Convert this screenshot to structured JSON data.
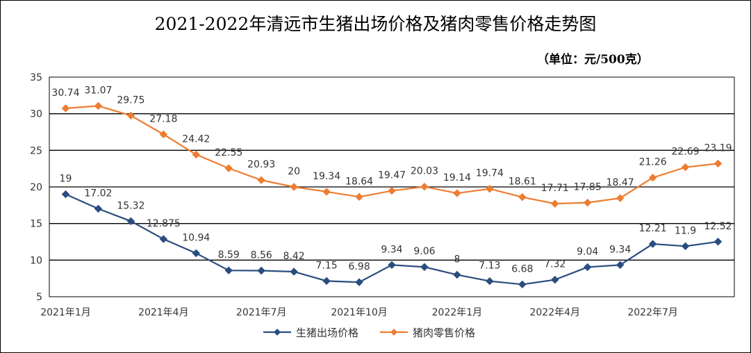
{
  "chart_data": {
    "type": "line",
    "title": "2021-2022年清远市生猪出场价格及猪肉零售价格走势图",
    "unit_note": "（单位：元/500克）",
    "ylim": [
      5,
      35
    ],
    "y_ticks": [
      5,
      10,
      15,
      20,
      25,
      30,
      35
    ],
    "grid": true,
    "legend_position": "bottom",
    "x": [
      "2021年1月",
      "2021年2月",
      "2021年3月",
      "2021年4月",
      "2021年5月",
      "2021年6月",
      "2021年7月",
      "2021年8月",
      "2021年9月",
      "2021年10月",
      "2021年11月",
      "2021年12月",
      "2022年1月",
      "2022年2月",
      "2022年3月",
      "2022年4月",
      "2022年5月",
      "2022年6月",
      "2022年7月",
      "2022年8月",
      "2022年9月"
    ],
    "x_tick_labels": [
      "2021年1月",
      "2021年4月",
      "2021年7月",
      "2021年10月",
      "2022年1月",
      "2022年4月",
      "2022年7月"
    ],
    "series": [
      {
        "name": "生猪出场价格",
        "color": "#2a4d7f",
        "marker": "diamond",
        "values": [
          19,
          17.02,
          15.32,
          12.875,
          10.94,
          8.59,
          8.56,
          8.42,
          7.15,
          6.98,
          9.34,
          9.06,
          8,
          7.13,
          6.68,
          7.32,
          9.04,
          9.34,
          12.21,
          11.9,
          12.52
        ]
      },
      {
        "name": "猪肉零售价格",
        "color": "#ed7d31",
        "marker": "diamond",
        "values": [
          30.74,
          31.07,
          29.75,
          27.18,
          24.42,
          22.55,
          20.93,
          20,
          19.34,
          18.64,
          19.47,
          20.03,
          19.14,
          19.74,
          18.61,
          17.71,
          17.85,
          18.47,
          21.26,
          22.69,
          23.19
        ]
      }
    ]
  }
}
